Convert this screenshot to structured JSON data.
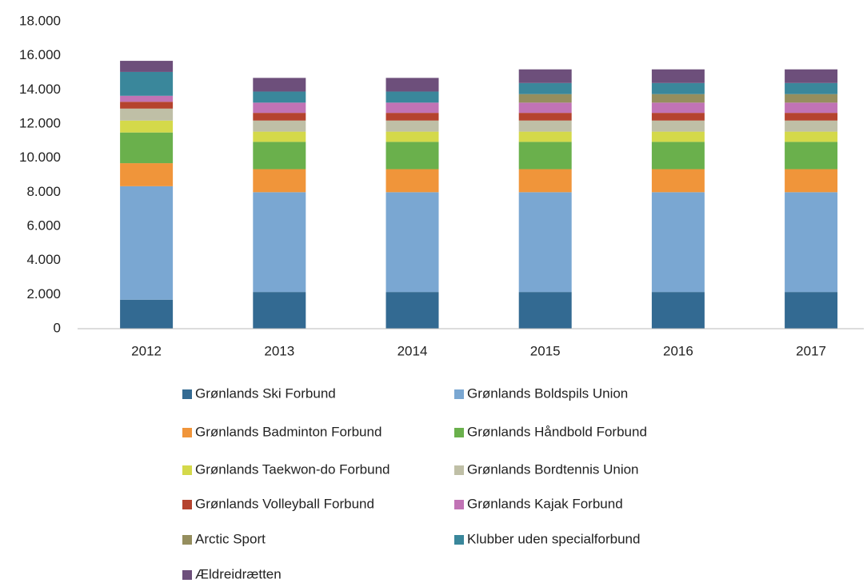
{
  "chart_data": {
    "type": "stacked_bar",
    "categories": [
      "2012",
      "2013",
      "2014",
      "2015",
      "2016",
      "2017"
    ],
    "series": [
      {
        "name": "Grønlands Ski Forbund",
        "color": "#336a92",
        "values": [
          1700,
          2150,
          2150,
          2150,
          2150,
          2150
        ]
      },
      {
        "name": "Grønlands Boldspils Union",
        "color": "#7aa7d2",
        "values": [
          6650,
          5850,
          5850,
          5850,
          5850,
          5850
        ]
      },
      {
        "name": "Grønlands Badminton Forbund",
        "color": "#f0953a",
        "values": [
          1350,
          1350,
          1350,
          1350,
          1350,
          1350
        ]
      },
      {
        "name": "Grønlands Håndbold Forbund",
        "color": "#6ab04c",
        "values": [
          1800,
          1600,
          1600,
          1600,
          1600,
          1600
        ]
      },
      {
        "name": "Grønlands Taekwon-do Forbund",
        "color": "#d4d94a",
        "values": [
          700,
          600,
          600,
          600,
          600,
          600
        ]
      },
      {
        "name": "Grønlands Bordtennis Union",
        "color": "#bfbfa6",
        "values": [
          700,
          650,
          650,
          650,
          650,
          650
        ]
      },
      {
        "name": "Grønlands Volleyball Forbund",
        "color": "#b5432e",
        "values": [
          400,
          450,
          450,
          450,
          450,
          450
        ]
      },
      {
        "name": "Grønlands Kajak Forbund",
        "color": "#c173b5",
        "values": [
          350,
          600,
          600,
          600,
          600,
          600
        ]
      },
      {
        "name": "Arctic Sport",
        "color": "#958e5e",
        "values": [
          0,
          0,
          0,
          500,
          500,
          500
        ]
      },
      {
        "name": "Klubber uden specialforbund",
        "color": "#3a879b",
        "values": [
          1400,
          650,
          650,
          650,
          650,
          650
        ]
      },
      {
        "name": "Ældreidrætten",
        "color": "#6d4f7b",
        "values": [
          650,
          800,
          800,
          800,
          800,
          800
        ]
      }
    ],
    "ylim": [
      0,
      18000
    ],
    "yticks": [
      0,
      {
        "value": 2000,
        "label": "2.000"
      },
      {
        "value": 4000,
        "label": "4.000"
      },
      {
        "value": 6000,
        "label": "6.000"
      },
      {
        "value": 8000,
        "label": "8.000"
      },
      {
        "value": 10000,
        "label": "10.000"
      },
      {
        "value": 12000,
        "label": "12.000"
      },
      {
        "value": 14000,
        "label": "14.000"
      },
      {
        "value": 16000,
        "label": "16.000"
      },
      {
        "value": 18000,
        "label": "18.000"
      }
    ],
    "grid": false,
    "legend": "bottom"
  }
}
